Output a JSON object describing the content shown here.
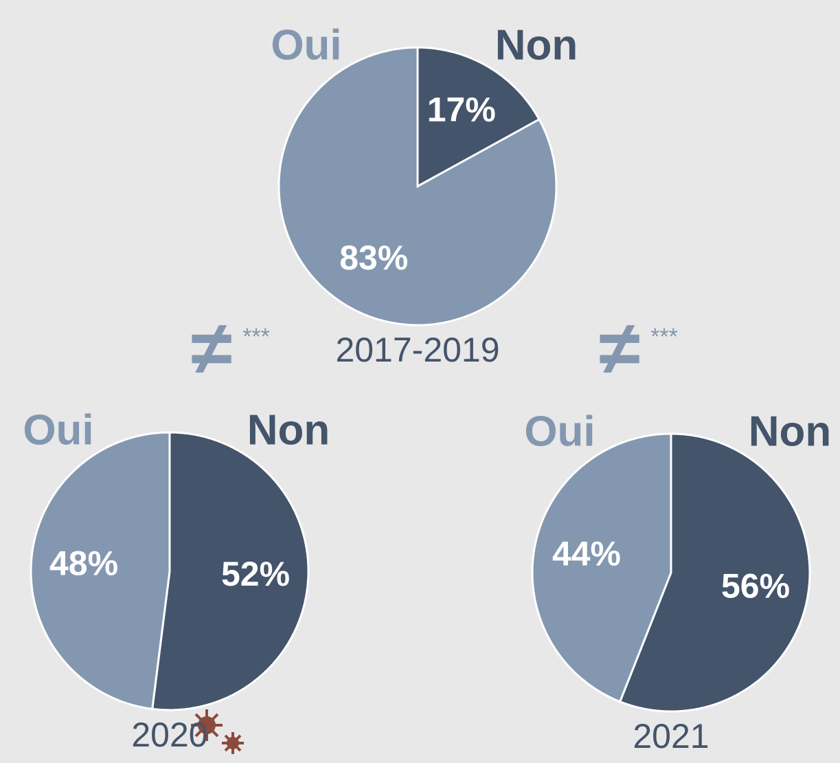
{
  "chart_data": [
    {
      "type": "pie",
      "title": "2017-2019",
      "categories": [
        "Non",
        "Oui"
      ],
      "values": [
        17,
        83
      ],
      "value_labels": [
        "17%",
        "83%"
      ],
      "colors": [
        "#44546a",
        "#8497b0"
      ]
    },
    {
      "type": "pie",
      "title": "2020",
      "categories": [
        "Non",
        "Oui"
      ],
      "values": [
        52,
        48
      ],
      "value_labels": [
        "52%",
        "48%"
      ],
      "colors": [
        "#44546a",
        "#8497b0"
      ]
    },
    {
      "type": "pie",
      "title": "2021",
      "categories": [
        "Non",
        "Oui"
      ],
      "values": [
        56,
        44
      ],
      "value_labels": [
        "56%",
        "44%"
      ],
      "colors": [
        "#44546a",
        "#8497b0"
      ]
    }
  ],
  "annotations": [
    {
      "symbol": "≠",
      "stars": "***"
    },
    {
      "symbol": "≠",
      "stars": "***"
    }
  ]
}
